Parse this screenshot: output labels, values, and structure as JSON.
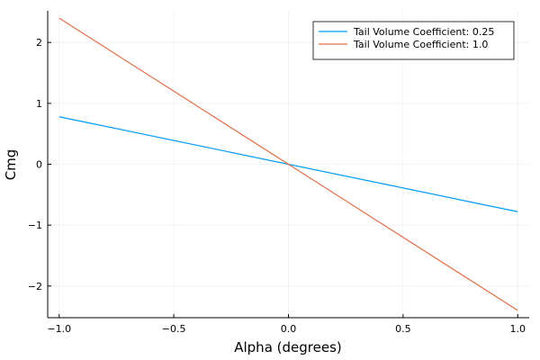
{
  "chart_data": {
    "type": "line",
    "xlabel": "Alpha (degrees)",
    "ylabel": "Cmg",
    "xlim": [
      -1.05,
      1.05
    ],
    "ylim": [
      -2.52,
      2.52
    ],
    "xticks": [
      -1.0,
      -0.5,
      0.0,
      0.5,
      1.0
    ],
    "xtick_labels": [
      "−1.0",
      "−0.5",
      "0.0",
      "0.5",
      "1.0"
    ],
    "yticks": [
      -2,
      -1,
      0,
      1,
      2
    ],
    "ytick_labels": [
      "−2",
      "−1",
      "0",
      "1",
      "2"
    ],
    "grid": true,
    "legend_position": "top-right",
    "series": [
      {
        "name": "Tail Volume Coefficient: 0.25",
        "color": "#009AFA",
        "x": [
          -1.0,
          1.0
        ],
        "y": [
          0.78,
          -0.78
        ]
      },
      {
        "name": "Tail Volume Coefficient: 1.0",
        "color": "#E36F47",
        "x": [
          -1.0,
          1.0
        ],
        "y": [
          2.4,
          -2.4
        ]
      }
    ]
  }
}
